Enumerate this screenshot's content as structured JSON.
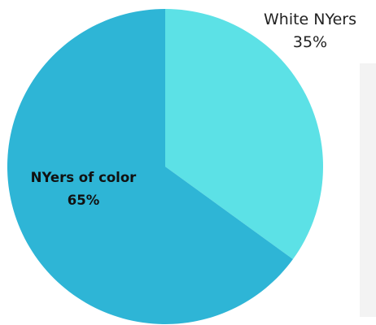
{
  "chart_data": {
    "type": "pie",
    "categories": [
      "White NYers",
      "NYers of color"
    ],
    "values": [
      35,
      65
    ],
    "value_labels": [
      "35%",
      "65%"
    ],
    "colors": [
      "#5ce1e6",
      "#2eb5d6"
    ],
    "start_angle": "12 o'clock",
    "direction": "clockwise",
    "legend": "none"
  }
}
